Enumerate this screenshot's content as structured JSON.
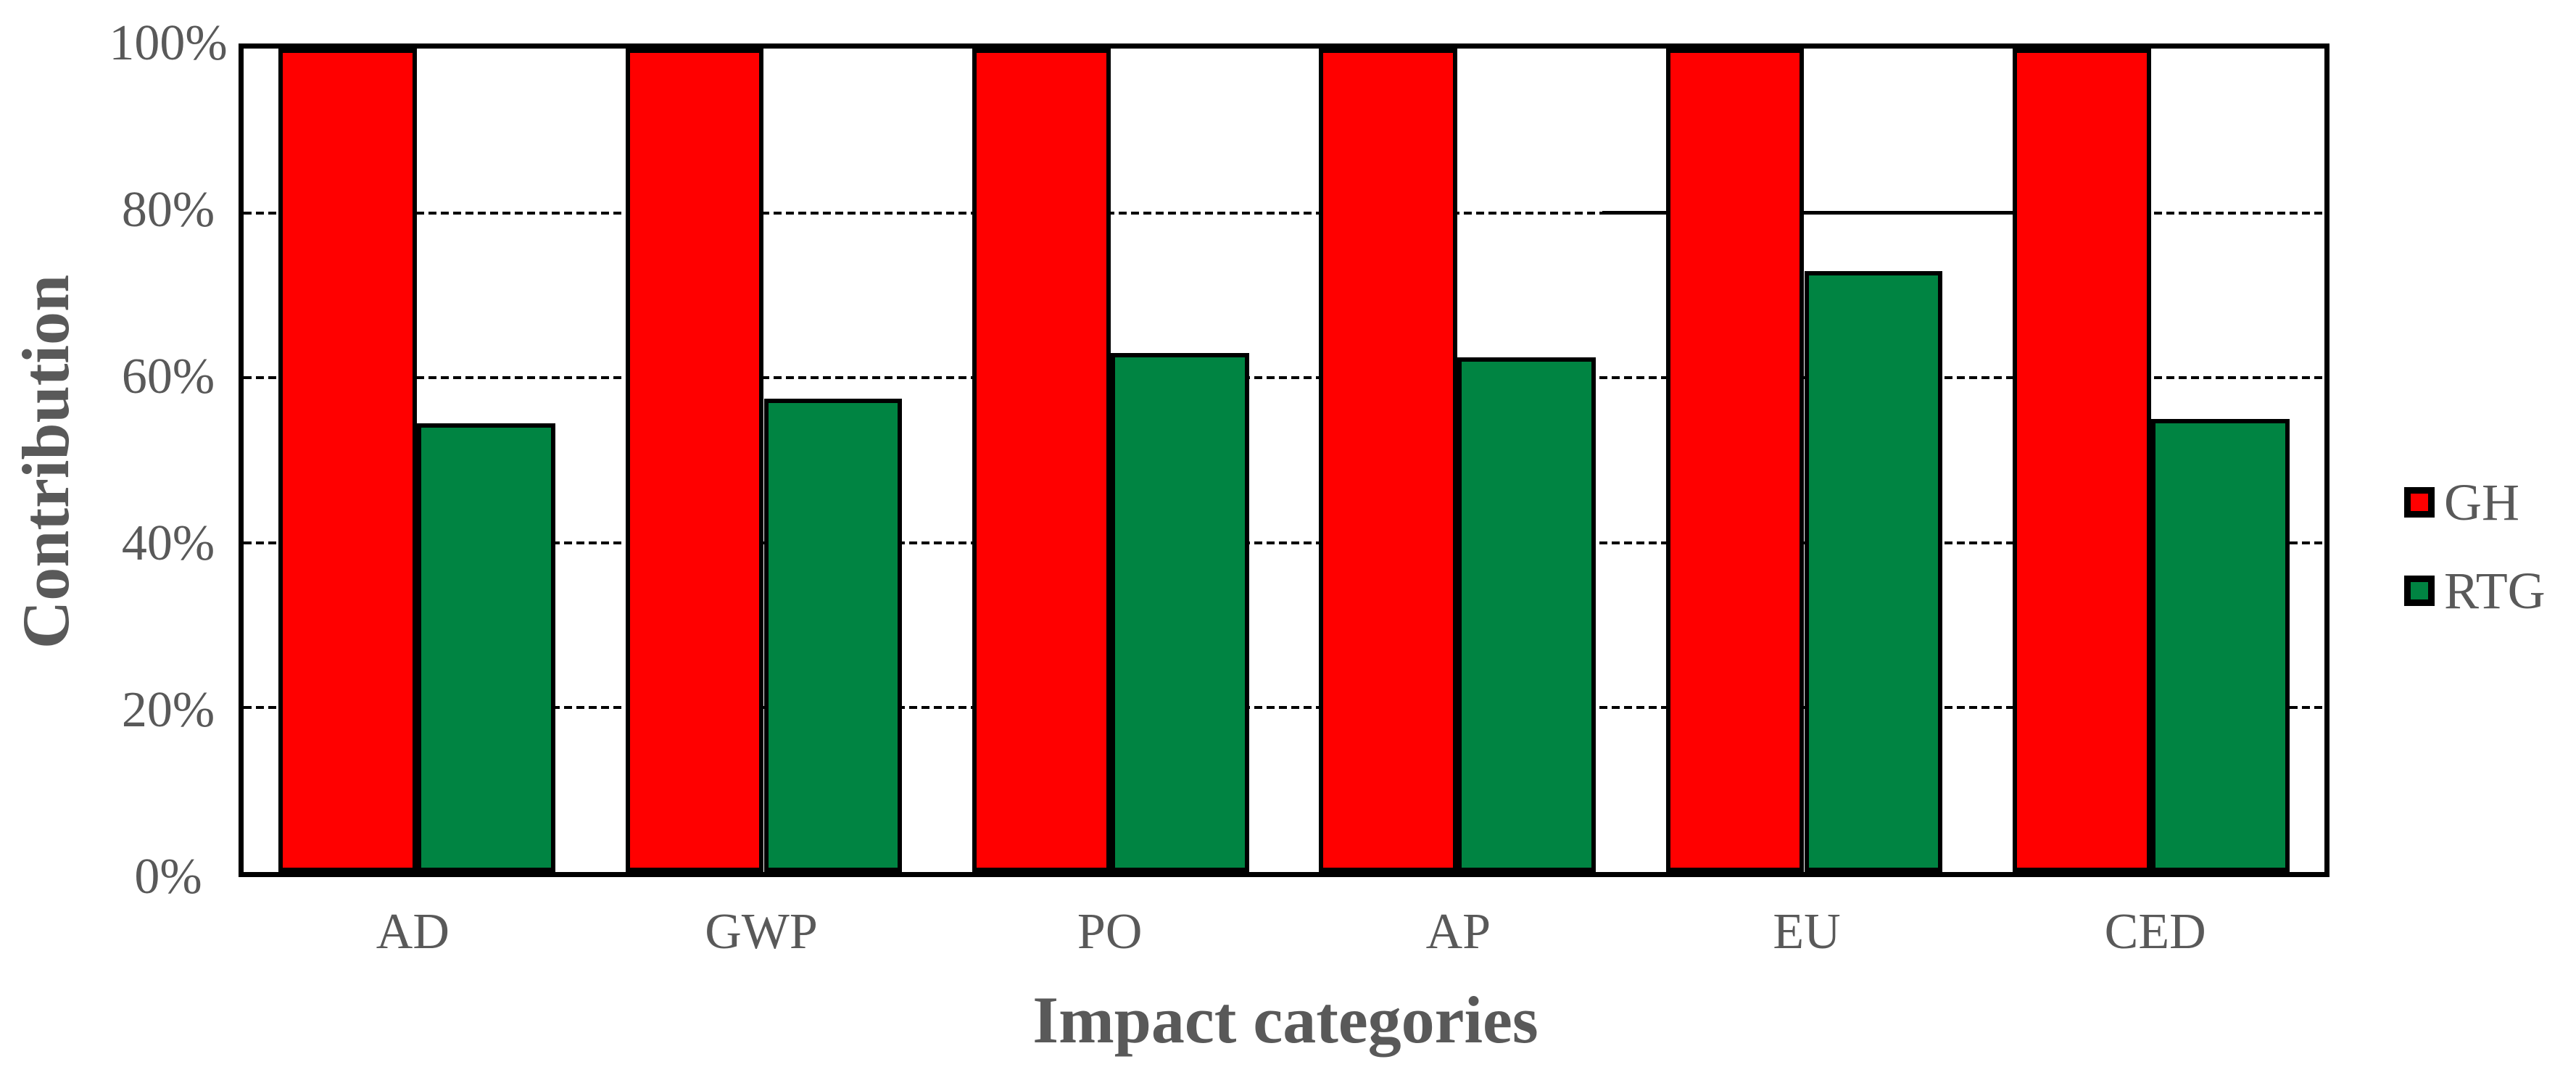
{
  "chart_data": {
    "type": "bar",
    "title": "",
    "xlabel": "Impact categories",
    "ylabel": "Contribution",
    "categories": [
      "AD",
      "GWP",
      "PO",
      "AP",
      "EU",
      "CED"
    ],
    "series": [
      {
        "name": "GH",
        "color": "#FF0000",
        "values": [
          100,
          100,
          100,
          100,
          100,
          100
        ]
      },
      {
        "name": "RTG",
        "color": "#008442",
        "values": [
          54.5,
          57.5,
          63,
          62.5,
          73,
          55
        ]
      }
    ],
    "ylim": [
      0,
      100
    ],
    "yticks": [
      0,
      20,
      40,
      60,
      80,
      100
    ],
    "ytick_labels": [
      "0%",
      "20%",
      "40%",
      "60%",
      "80%",
      "100%"
    ],
    "grid": "horizontal dashed black lines at 20%, 40%, 60%, 80%",
    "legend_position": "right",
    "annotations": [
      {
        "type": "solid_hline_segment",
        "y": 80,
        "x_start_pct": 65.3,
        "x_end_pct": 85.5,
        "note": "solid black line at 80% level spanning the EU category gap region"
      }
    ],
    "colors": {
      "bar_border": "#000000",
      "plot_border": "#000000",
      "text": "#595959",
      "background": "#ffffff"
    }
  }
}
